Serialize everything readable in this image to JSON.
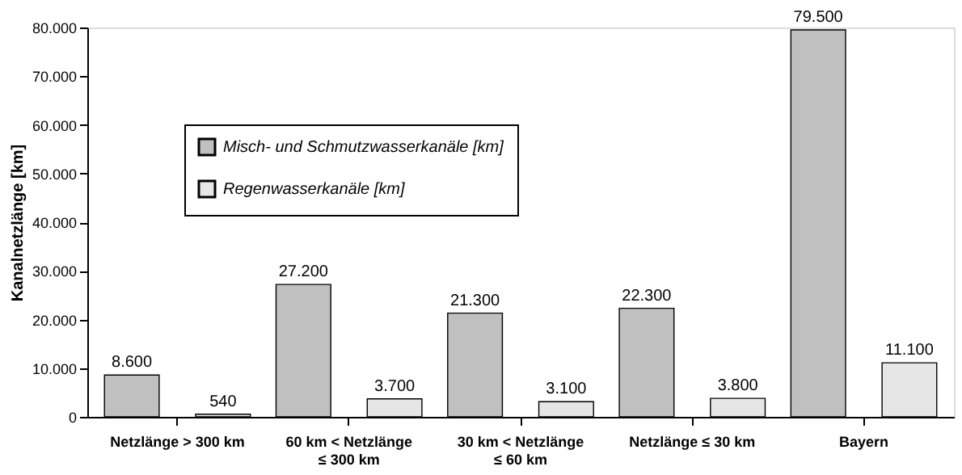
{
  "chart_data": {
    "type": "bar",
    "ylabel": "Kanalnetzlänge [km]",
    "categories": [
      "Netzlänge > 300 km",
      "60 km < Netzlänge\n≤ 300 km",
      "30 km < Netzlänge\n≤ 60 km",
      "Netzlänge ≤ 30 km",
      "Bayern"
    ],
    "series": [
      {
        "name": "Misch- und Schmutzwasserkanäle [km]",
        "color": "#c0c0c0",
        "values": [
          8600,
          27200,
          21300,
          22300,
          79500
        ],
        "value_labels": [
          "8.600",
          "27.200",
          "21.300",
          "22.300",
          "79.500"
        ]
      },
      {
        "name": "Regenwasserkanäle [km]",
        "color": "#e6e6e6",
        "values": [
          540,
          3700,
          3100,
          3800,
          11100
        ],
        "value_labels": [
          "540",
          "3.700",
          "3.100",
          "3.800",
          "11.100"
        ]
      }
    ],
    "ylim": [
      0,
      80000
    ],
    "yticks": [
      {
        "value": 0,
        "label": "0"
      },
      {
        "value": 10000,
        "label": "10.000"
      },
      {
        "value": 20000,
        "label": "20.000"
      },
      {
        "value": 30000,
        "label": "30.000"
      },
      {
        "value": 40000,
        "label": "40.000"
      },
      {
        "value": 50000,
        "label": "50.000"
      },
      {
        "value": 60000,
        "label": "60.000"
      },
      {
        "value": 70000,
        "label": "70.000"
      },
      {
        "value": 80000,
        "label": "80.000"
      }
    ],
    "grid": false,
    "legend": "top left"
  }
}
